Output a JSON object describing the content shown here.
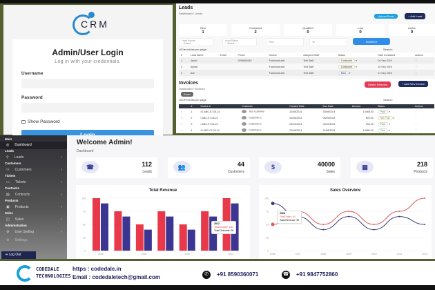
{
  "login": {
    "logo": "CRM",
    "title": "Admin/User Login",
    "subtitle": "Log in with your credentials.",
    "username_label": "Username",
    "password_label": "Password",
    "show_password": "Show Password",
    "login_button": "Login"
  },
  "leads": {
    "title": "Leads",
    "breadcrumb": "Dashboard / Leads",
    "upload_excel": "Upload Excel",
    "add_lead": "+ Add Lead",
    "stats": [
      {
        "label": "New",
        "value": "1"
      },
      {
        "label": "Contacted",
        "value": "2"
      },
      {
        "label": "Qualified",
        "value": "0"
      },
      {
        "label": "Lost",
        "value": "0"
      },
      {
        "label": "Active",
        "value": "0"
      }
    ],
    "filters": {
      "lead_source_label": "Lead Source",
      "lead_source": "-- Select --",
      "lead_status_label": "Lead Status",
      "lead_status": "-- Select --",
      "from": "From",
      "to": "To",
      "search_button": "SEARCH"
    },
    "entries": "100",
    "entries_label": "entries per page",
    "search_label": "Search:",
    "columns": [
      "#",
      "Lead Name",
      "Email",
      "Phone",
      "Source",
      "Assigned Staff",
      "Status",
      "Date Contacted",
      "Actions"
    ],
    "rows": [
      [
        "1",
        "Jacob",
        "",
        "9296660340",
        "Facebook ads",
        "Test Staff",
        "Contacted",
        "04 Sep 2024"
      ],
      [
        "2",
        "Aymal",
        "",
        "",
        "Facebook ads",
        "Test Staff",
        "Contacted",
        "10 Sep 2024"
      ],
      [
        "3",
        "Ave",
        "",
        "",
        "Facebook ads",
        "Test Staff",
        "New",
        "21 Sep 2024"
      ]
    ]
  },
  "invoices": {
    "title": "Invoices",
    "breadcrumb": "Dashboard / Invoices",
    "delete_selected": "Delete Selected",
    "add_invoice": "+ Add New Invoice",
    "excel": "Excel",
    "entries": "100",
    "entries_label": "entries per page",
    "search_label": "Search:",
    "columns": [
      "",
      "#",
      "Invoice #",
      "Customer",
      "Created Date",
      "Due Date",
      "Amount",
      "Status",
      "Actions"
    ],
    "rows": [
      [
        "1",
        "IO-ABC-07-06-24",
        "Test Customer",
        "23/08/2024",
        "30/08/2024",
        "10488.00",
        "Paid"
      ],
      [
        "2",
        "I-ABC-07-06-24",
        "Customer 1",
        "24/08/2024",
        "06/09/2024",
        "800.00",
        "Not Paid"
      ],
      [
        "3",
        "I-ABC-07-06-24",
        "Customer 1",
        "03/09/2024",
        "03/09/2024",
        "304.00",
        "Paid"
      ],
      [
        "4",
        "IV-ABC-07-06-24",
        "Customer 1",
        "23/08/2024",
        "24/08/2024",
        "10680.00",
        "Paid"
      ]
    ]
  },
  "dashboard": {
    "welcome": "Welcome Admin!",
    "breadcrumb": "Dashboard",
    "sidebar": [
      {
        "h": "Main",
        "item": "Dashboard",
        "icon": "◎"
      },
      {
        "h": "Leads",
        "item": "Leads",
        "icon": "⚲"
      },
      {
        "h": "Customers",
        "item": "Customers",
        "icon": "⚇"
      },
      {
        "h": "Tickets",
        "item": "Tickets",
        "icon": "▭"
      },
      {
        "h": "Contracts",
        "item": "Contracts",
        "icon": "▤"
      },
      {
        "h": "Products",
        "item": "Products",
        "icon": "▣"
      },
      {
        "h": "Sales",
        "item": "Sales",
        "icon": "◫"
      },
      {
        "h": "Administration",
        "item": "User Setting",
        "icon": "⚙"
      }
    ],
    "settings": "Settings",
    "logout": "Log Out",
    "stats": [
      {
        "value": "112",
        "label": "Leads",
        "icon": "☎"
      },
      {
        "value": "44",
        "label": "Customers",
        "icon": "👥"
      },
      {
        "value": "40000",
        "label": "Sales",
        "icon": "$"
      },
      {
        "value": "218",
        "label": "Products",
        "icon": "▦"
      }
    ]
  },
  "chart_data": [
    {
      "type": "bar",
      "title": "Total Revenue",
      "categories": [
        "2006",
        "2007",
        "2008",
        "2009",
        "2010",
        "2011",
        "2012"
      ],
      "ylim": [
        0,
        100
      ],
      "yticks": [
        "0",
        "25",
        "50",
        "75",
        "100"
      ],
      "series": [
        {
          "name": "Total Income",
          "color": "#e8394a",
          "values": [
            100,
            75,
            50,
            75,
            50,
            75,
            100
          ]
        },
        {
          "name": "Total Outcome",
          "color": "#3d3592",
          "values": [
            90,
            65,
            40,
            65,
            40,
            65,
            90
          ]
        }
      ],
      "tooltip": {
        "title": "2012",
        "lines": [
          "Total Income: 100",
          "Total Outcome: 90"
        ]
      }
    },
    {
      "type": "line",
      "title": "Sales Overview",
      "categories": [
        "2006",
        "2007",
        "2008",
        "2009",
        "2010",
        "2011",
        "2012"
      ],
      "ylim": [
        0,
        100
      ],
      "yticks": [
        "0",
        "25",
        "50",
        "75",
        "100"
      ],
      "series": [
        {
          "name": "Total Sales",
          "color": "#e05a5a",
          "values": [
            50,
            75,
            50,
            75,
            50,
            75,
            100
          ]
        },
        {
          "name": "Total Revenue",
          "color": "#3a3a7a",
          "values": [
            90,
            65,
            40,
            65,
            40,
            65,
            50
          ]
        }
      ],
      "tooltip": {
        "title": "2006",
        "lines": [
          "Total Sales: 50",
          "Total Revenue: 90"
        ]
      }
    }
  ],
  "footer": {
    "company_line1": "CODEDALE",
    "company_line2": "TECHNOLOGIES",
    "website": "https : codedale.in",
    "email": "Email : codedaletech@gmail.com",
    "whatsapp": "+91 8590360071",
    "phone": "+91 9847752860"
  }
}
